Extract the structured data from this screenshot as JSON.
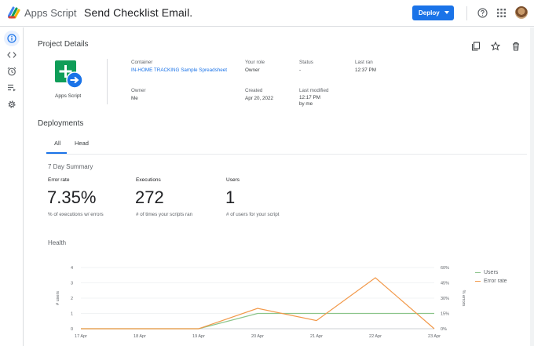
{
  "app": {
    "name": "Apps Script",
    "project_title": "Send Checklist Email."
  },
  "header": {
    "deploy_label": "Deploy"
  },
  "colors": {
    "accent": "#1a73e8",
    "users_line": "#8bc48a",
    "error_line": "#f2994a"
  },
  "rail": {
    "items": [
      {
        "icon": "info-icon"
      },
      {
        "icon": "code-icon"
      },
      {
        "icon": "alarm-icon"
      },
      {
        "icon": "executions-icon"
      },
      {
        "icon": "gear-icon"
      }
    ]
  },
  "project": {
    "heading": "Project Details",
    "icon_label": "Apps Script",
    "container_label": "Container",
    "container_value": "IN-HOME TRACKING Sample Spreadsheet",
    "role_label": "Your role",
    "role_value": "Owner",
    "status_label": "Status",
    "status_value": "-",
    "last_ran_label": "Last ran",
    "last_ran_value": "12:37 PM",
    "owner_label": "Owner",
    "owner_value": "Me",
    "created_label": "Created",
    "created_value": "Apr 20, 2022",
    "modified_label": "Last modified",
    "modified_value": "12:17 PM",
    "modified_by": "by me"
  },
  "deployments": {
    "heading": "Deployments",
    "tabs": [
      {
        "label": "All"
      },
      {
        "label": "Head"
      }
    ]
  },
  "summary": {
    "title": "7 Day Summary",
    "metrics": [
      {
        "label": "Error rate",
        "value": "7.35%",
        "desc": "% of executions w/ errors"
      },
      {
        "label": "Executions",
        "value": "272",
        "desc": "# of times your scripts ran"
      },
      {
        "label": "Users",
        "value": "1",
        "desc": "# of users for your script"
      }
    ]
  },
  "health": {
    "title": "Health"
  },
  "chart_data": {
    "type": "line",
    "categories": [
      "17 Apr",
      "18 Apr",
      "19 Apr",
      "20 Apr",
      "21 Apr",
      "22 Apr",
      "23 Apr"
    ],
    "ylabel": "# users",
    "y2label": "% errors",
    "ylim": [
      0,
      4
    ],
    "y2lim": [
      0,
      60
    ],
    "yticks": [
      "0",
      "1",
      "2",
      "3",
      "4"
    ],
    "y2ticks": [
      "0%",
      "15%",
      "30%",
      "45%",
      "60%"
    ],
    "legend": "right",
    "series": [
      {
        "name": "Users",
        "axis": "left",
        "values": [
          0,
          0,
          0,
          1,
          1,
          1,
          1
        ]
      },
      {
        "name": "Error rate",
        "axis": "right",
        "values": [
          0,
          0,
          0,
          20,
          8,
          50,
          0
        ]
      }
    ]
  }
}
